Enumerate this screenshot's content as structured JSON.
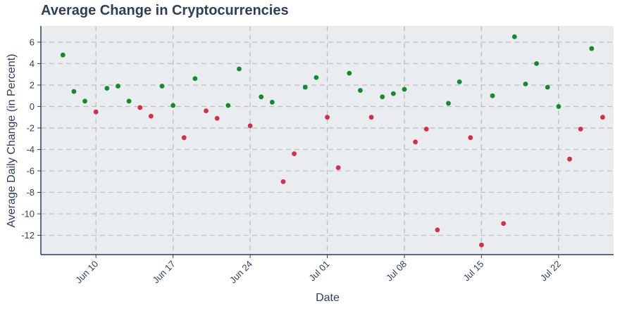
{
  "chart_data": {
    "type": "scatter",
    "title": "Average Change in Cryptocurrencies",
    "xlabel": "Date",
    "ylabel": "Average Daily Change (in Percent)",
    "x_axis_type": "date",
    "xlim": [
      "2024-06-05",
      "2024-07-27"
    ],
    "ylim": [
      -13.8,
      7.5
    ],
    "x_ticks": [
      {
        "date": "2024-06-10",
        "label": "Jun 10"
      },
      {
        "date": "2024-06-17",
        "label": "Jun 17"
      },
      {
        "date": "2024-06-24",
        "label": "Jun 24"
      },
      {
        "date": "2024-07-01",
        "label": "Jul 01"
      },
      {
        "date": "2024-07-08",
        "label": "Jul 08"
      },
      {
        "date": "2024-07-15",
        "label": "Jul 15"
      },
      {
        "date": "2024-07-22",
        "label": "Jul 22"
      }
    ],
    "y_ticks": [
      6,
      4,
      2,
      0,
      -2,
      -4,
      -6,
      -8,
      -10,
      -12
    ],
    "grid": true,
    "colors": {
      "positive": "#138a2f",
      "negative": "#d42e48",
      "plot_background": "#e9edef",
      "grid": "#bdc1c4",
      "axis": "#2e3f57",
      "title": "#2e3f57"
    },
    "points": [
      {
        "x": "2024-06-07",
        "y": 4.8
      },
      {
        "x": "2024-06-08",
        "y": 1.4
      },
      {
        "x": "2024-06-09",
        "y": 0.5
      },
      {
        "x": "2024-06-10",
        "y": -0.5
      },
      {
        "x": "2024-06-11",
        "y": 1.7
      },
      {
        "x": "2024-06-12",
        "y": 1.9
      },
      {
        "x": "2024-06-13",
        "y": 0.5
      },
      {
        "x": "2024-06-14",
        "y": -0.1
      },
      {
        "x": "2024-06-15",
        "y": -0.9
      },
      {
        "x": "2024-06-16",
        "y": 1.9
      },
      {
        "x": "2024-06-17",
        "y": 0.1
      },
      {
        "x": "2024-06-18",
        "y": -2.9
      },
      {
        "x": "2024-06-19",
        "y": 2.6
      },
      {
        "x": "2024-06-20",
        "y": -0.4
      },
      {
        "x": "2024-06-21",
        "y": -1.1
      },
      {
        "x": "2024-06-22",
        "y": 0.1
      },
      {
        "x": "2024-06-23",
        "y": 3.5
      },
      {
        "x": "2024-06-24",
        "y": -1.8
      },
      {
        "x": "2024-06-25",
        "y": 0.9
      },
      {
        "x": "2024-06-26",
        "y": 0.4
      },
      {
        "x": "2024-06-27",
        "y": -7.0
      },
      {
        "x": "2024-06-28",
        "y": -4.4
      },
      {
        "x": "2024-06-29",
        "y": 1.8
      },
      {
        "x": "2024-06-30",
        "y": 2.7
      },
      {
        "x": "2024-07-01",
        "y": -1.0
      },
      {
        "x": "2024-07-02",
        "y": -5.7
      },
      {
        "x": "2024-07-03",
        "y": 3.1
      },
      {
        "x": "2024-07-04",
        "y": 1.5
      },
      {
        "x": "2024-07-05",
        "y": -1.0
      },
      {
        "x": "2024-07-06",
        "y": 0.9
      },
      {
        "x": "2024-07-07",
        "y": 1.2
      },
      {
        "x": "2024-07-08",
        "y": 1.6
      },
      {
        "x": "2024-07-09",
        "y": -3.3
      },
      {
        "x": "2024-07-10",
        "y": -2.1
      },
      {
        "x": "2024-07-11",
        "y": -11.5
      },
      {
        "x": "2024-07-12",
        "y": 0.3
      },
      {
        "x": "2024-07-13",
        "y": 2.3
      },
      {
        "x": "2024-07-14",
        "y": -2.9
      },
      {
        "x": "2024-07-15",
        "y": -12.9
      },
      {
        "x": "2024-07-16",
        "y": 1.0
      },
      {
        "x": "2024-07-17",
        "y": -10.9
      },
      {
        "x": "2024-07-18",
        "y": 6.5
      },
      {
        "x": "2024-07-19",
        "y": 2.1
      },
      {
        "x": "2024-07-20",
        "y": 4.0
      },
      {
        "x": "2024-07-21",
        "y": 1.8
      },
      {
        "x": "2024-07-22",
        "y": 0.0
      },
      {
        "x": "2024-07-23",
        "y": -4.9
      },
      {
        "x": "2024-07-24",
        "y": -2.1
      },
      {
        "x": "2024-07-25",
        "y": 5.4
      },
      {
        "x": "2024-07-26",
        "y": -1.0
      }
    ]
  }
}
